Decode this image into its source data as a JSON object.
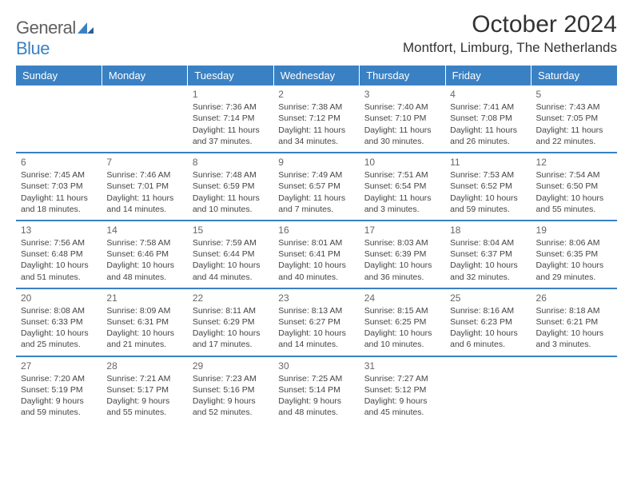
{
  "logo": {
    "text1": "General",
    "text2": "Blue"
  },
  "title": "October 2024",
  "location": "Montfort, Limburg, The Netherlands",
  "colors": {
    "header_bg": "#3a81c4",
    "header_text": "#ffffff",
    "divider": "#3a81c4",
    "body_text": "#444444",
    "title_text": "#333333",
    "logo_gray": "#606060",
    "logo_blue": "#3a81c4",
    "page_bg": "#ffffff"
  },
  "day_headers": [
    "Sunday",
    "Monday",
    "Tuesday",
    "Wednesday",
    "Thursday",
    "Friday",
    "Saturday"
  ],
  "weeks": [
    [
      null,
      null,
      {
        "n": "1",
        "sr": "7:36 AM",
        "ss": "7:14 PM",
        "dl": "11 hours and 37 minutes."
      },
      {
        "n": "2",
        "sr": "7:38 AM",
        "ss": "7:12 PM",
        "dl": "11 hours and 34 minutes."
      },
      {
        "n": "3",
        "sr": "7:40 AM",
        "ss": "7:10 PM",
        "dl": "11 hours and 30 minutes."
      },
      {
        "n": "4",
        "sr": "7:41 AM",
        "ss": "7:08 PM",
        "dl": "11 hours and 26 minutes."
      },
      {
        "n": "5",
        "sr": "7:43 AM",
        "ss": "7:05 PM",
        "dl": "11 hours and 22 minutes."
      }
    ],
    [
      {
        "n": "6",
        "sr": "7:45 AM",
        "ss": "7:03 PM",
        "dl": "11 hours and 18 minutes."
      },
      {
        "n": "7",
        "sr": "7:46 AM",
        "ss": "7:01 PM",
        "dl": "11 hours and 14 minutes."
      },
      {
        "n": "8",
        "sr": "7:48 AM",
        "ss": "6:59 PM",
        "dl": "11 hours and 10 minutes."
      },
      {
        "n": "9",
        "sr": "7:49 AM",
        "ss": "6:57 PM",
        "dl": "11 hours and 7 minutes."
      },
      {
        "n": "10",
        "sr": "7:51 AM",
        "ss": "6:54 PM",
        "dl": "11 hours and 3 minutes."
      },
      {
        "n": "11",
        "sr": "7:53 AM",
        "ss": "6:52 PM",
        "dl": "10 hours and 59 minutes."
      },
      {
        "n": "12",
        "sr": "7:54 AM",
        "ss": "6:50 PM",
        "dl": "10 hours and 55 minutes."
      }
    ],
    [
      {
        "n": "13",
        "sr": "7:56 AM",
        "ss": "6:48 PM",
        "dl": "10 hours and 51 minutes."
      },
      {
        "n": "14",
        "sr": "7:58 AM",
        "ss": "6:46 PM",
        "dl": "10 hours and 48 minutes."
      },
      {
        "n": "15",
        "sr": "7:59 AM",
        "ss": "6:44 PM",
        "dl": "10 hours and 44 minutes."
      },
      {
        "n": "16",
        "sr": "8:01 AM",
        "ss": "6:41 PM",
        "dl": "10 hours and 40 minutes."
      },
      {
        "n": "17",
        "sr": "8:03 AM",
        "ss": "6:39 PM",
        "dl": "10 hours and 36 minutes."
      },
      {
        "n": "18",
        "sr": "8:04 AM",
        "ss": "6:37 PM",
        "dl": "10 hours and 32 minutes."
      },
      {
        "n": "19",
        "sr": "8:06 AM",
        "ss": "6:35 PM",
        "dl": "10 hours and 29 minutes."
      }
    ],
    [
      {
        "n": "20",
        "sr": "8:08 AM",
        "ss": "6:33 PM",
        "dl": "10 hours and 25 minutes."
      },
      {
        "n": "21",
        "sr": "8:09 AM",
        "ss": "6:31 PM",
        "dl": "10 hours and 21 minutes."
      },
      {
        "n": "22",
        "sr": "8:11 AM",
        "ss": "6:29 PM",
        "dl": "10 hours and 17 minutes."
      },
      {
        "n": "23",
        "sr": "8:13 AM",
        "ss": "6:27 PM",
        "dl": "10 hours and 14 minutes."
      },
      {
        "n": "24",
        "sr": "8:15 AM",
        "ss": "6:25 PM",
        "dl": "10 hours and 10 minutes."
      },
      {
        "n": "25",
        "sr": "8:16 AM",
        "ss": "6:23 PM",
        "dl": "10 hours and 6 minutes."
      },
      {
        "n": "26",
        "sr": "8:18 AM",
        "ss": "6:21 PM",
        "dl": "10 hours and 3 minutes."
      }
    ],
    [
      {
        "n": "27",
        "sr": "7:20 AM",
        "ss": "5:19 PM",
        "dl": "9 hours and 59 minutes."
      },
      {
        "n": "28",
        "sr": "7:21 AM",
        "ss": "5:17 PM",
        "dl": "9 hours and 55 minutes."
      },
      {
        "n": "29",
        "sr": "7:23 AM",
        "ss": "5:16 PM",
        "dl": "9 hours and 52 minutes."
      },
      {
        "n": "30",
        "sr": "7:25 AM",
        "ss": "5:14 PM",
        "dl": "9 hours and 48 minutes."
      },
      {
        "n": "31",
        "sr": "7:27 AM",
        "ss": "5:12 PM",
        "dl": "9 hours and 45 minutes."
      },
      null,
      null
    ]
  ],
  "labels": {
    "sunrise": "Sunrise: ",
    "sunset": "Sunset: ",
    "daylight": "Daylight: "
  }
}
